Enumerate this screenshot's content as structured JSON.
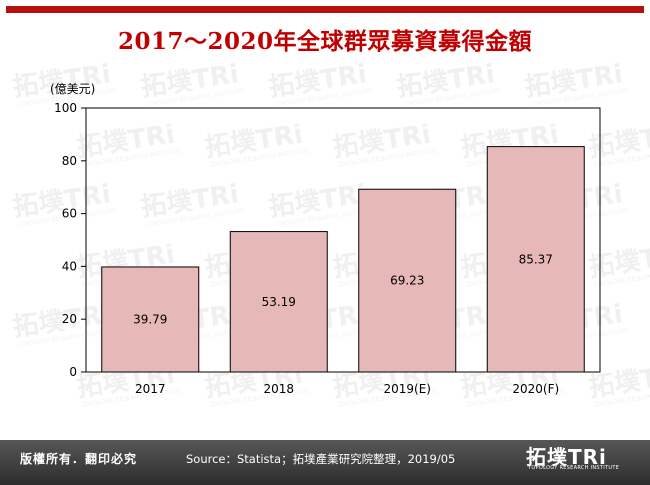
{
  "header": {
    "title": "2017～2020年全球群眾募資募得金額"
  },
  "footer": {
    "copyright": "版權所有．翻印必究",
    "source": "Source：Statista；拓墣產業研究院整理，2019/05",
    "logo_main": "拓墣TRi",
    "logo_sub": "TOPOLOGY RESEARCH INSTITUTE"
  },
  "watermark": {
    "main": "拓墣TRi",
    "sub": "TOPOLOGY RESEARCH INSTITUTE"
  },
  "colors": {
    "title": "#c00000",
    "bar_fill": "#e6b9b8",
    "bar_stroke": "#000000",
    "frame_accent": "#b80f0f"
  },
  "chart_data": {
    "type": "bar",
    "ylabel": "(億美元)",
    "categories": [
      "2017",
      "2018",
      "2019(E)",
      "2020(F)"
    ],
    "values": [
      39.79,
      53.19,
      69.23,
      85.37
    ],
    "data_labels": [
      "39.79",
      "53.19",
      "69.23",
      "85.37"
    ],
    "ylim": [
      0,
      100
    ],
    "yticks": [
      0,
      20,
      40,
      60,
      80,
      100
    ],
    "grid": false,
    "legend": "none"
  }
}
